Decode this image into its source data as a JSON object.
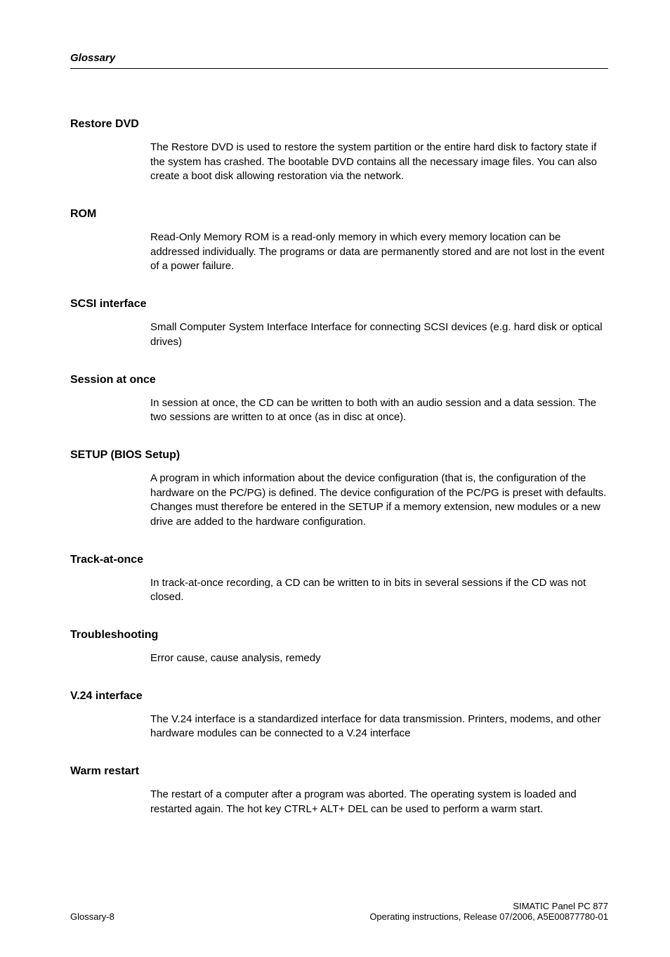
{
  "header": {
    "title": "Glossary"
  },
  "entries": [
    {
      "term": "Restore DVD",
      "definition": "The Restore DVD is used to restore the system partition or the entire hard disk to factory state if the system has crashed. The bootable DVD contains all the necessary image files. You can also create a boot disk allowing restoration via the network."
    },
    {
      "term": "ROM",
      "definition": "Read-Only Memory ROM is a read-only memory in which every memory location can be addressed individually. The programs or data are permanently stored and are not lost in the event of a power failure."
    },
    {
      "term": "SCSI interface",
      "definition": "Small Computer System Interface Interface for connecting SCSI devices (e.g. hard disk or optical drives)"
    },
    {
      "term": "Session at once",
      "definition": "In session at once, the CD can be written to both with an audio session and a data session. The two sessions are written to at once (as in disc at once)."
    },
    {
      "term": "SETUP (BIOS Setup)",
      "definition": "A program in which information about the device configuration (that is, the configuration of the hardware on the PC/PG) is defined. The device configuration of the PC/PG is preset with defaults. Changes must therefore be entered in the SETUP if a memory extension, new modules or a new drive are added to the hardware configuration."
    },
    {
      "term": "Track-at-once",
      "definition": "In track-at-once recording, a CD can be written to in bits in several sessions if the CD was not closed."
    },
    {
      "term": "Troubleshooting",
      "definition": "Error cause, cause analysis, remedy"
    },
    {
      "term": "V.24 interface",
      "definition": "The V.24 interface is a standardized interface for data transmission. Printers, modems, and other hardware modules can be connected to a V.24 interface"
    },
    {
      "term": "Warm restart",
      "definition": "The restart of a computer after a program was aborted. The operating system is loaded and restarted again. The hot key CTRL+ ALT+ DEL can be used to perform a warm start."
    }
  ],
  "footer": {
    "left": "Glossary-8",
    "right_line1": "SIMATIC Panel PC 877",
    "right_line2": "Operating instructions, Release 07/2006, A5E00877780-01"
  }
}
